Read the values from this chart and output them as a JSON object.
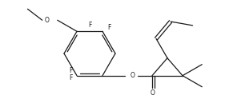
{
  "bg_color": "#ffffff",
  "line_color": "#1a1a1a",
  "line_width": 0.9,
  "font_size": 5.5,
  "figsize": [
    2.81,
    1.34
  ],
  "dpi": 100,
  "xlim": [
    0,
    281
  ],
  "ylim": [
    0,
    134
  ]
}
